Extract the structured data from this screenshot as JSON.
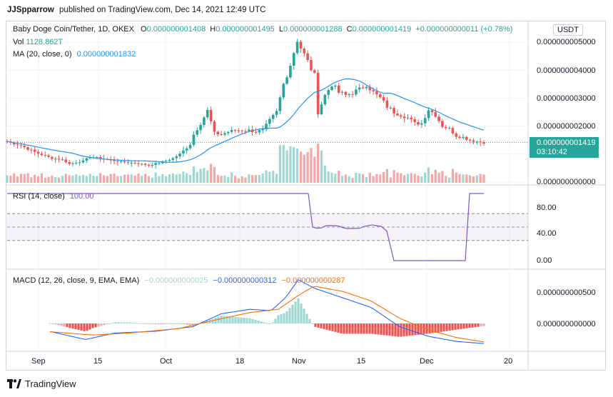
{
  "header": {
    "user": "JJSpparrow",
    "published": "published on TradingView.com, Dec 14, 2021 12:49 UTC"
  },
  "legend": {
    "symbol": "Baby Doge Coin/Tether, 1D, OKEX",
    "o_label": "O",
    "o_val": "0.000000001408",
    "h_label": "H",
    "h_val": "0.000000001495",
    "l_label": "L",
    "l_val": "0.000000001288",
    "c_label": "C",
    "c_val": "0.000000001419",
    "change": "+0.000000000011 (+0.78%)",
    "vol_label": "Vol",
    "vol_val": "1128.862T",
    "ma_label": "MA (20, close, 0)",
    "ma_val": "0.000000001832",
    "rsi_label": "RSI (14, close)",
    "rsi_val": "100.00",
    "macd_label": "MACD (12, 26, close, 9, EMA, EMA)",
    "macd_hist": "−0.000000000025",
    "macd_line": "−0.000000000312",
    "macd_signal": "−0.000000000287"
  },
  "price_axis": {
    "currency": "USDT",
    "ticks": [
      "0.000000005000",
      "0.000000004000",
      "0.000000003000",
      "0.000000002000",
      "0.000000000000"
    ],
    "last_price": "0.000000001419",
    "countdown": "03:10:42"
  },
  "rsi_axis": {
    "ticks": [
      "80.00",
      "40.00",
      "0.00"
    ]
  },
  "macd_axis": {
    "ticks": [
      "0.000000000500",
      "0.000000000000"
    ]
  },
  "time_axis": {
    "ticks": [
      "Sep",
      "15",
      "Oct",
      "18",
      "Nov",
      "15",
      "Dec",
      "20"
    ]
  },
  "footer": {
    "brand": "TradingView"
  },
  "colors": {
    "up": "#26a69a",
    "down": "#ef5350",
    "ma": "#2196f3",
    "rsi": "#7e57c2",
    "macd": "#2962ff",
    "signal": "#ff6d00",
    "grid": "#f0f3fa",
    "last": "#26a69a"
  },
  "chart_data": {
    "type": "candlestick",
    "title": "Baby Doge Coin/Tether, 1D, OKEX",
    "unit_scale": "1e-9 USDT",
    "dates": [
      "Sep 15",
      "Oct 1",
      "Oct 18",
      "Nov 1",
      "Nov 15",
      "Dec 1",
      "Dec 14"
    ],
    "close_path": [
      [
        0,
        1.45
      ],
      [
        4,
        1.3
      ],
      [
        9,
        1.02
      ],
      [
        13,
        0.85
      ],
      [
        16,
        0.8
      ],
      [
        18,
        0.65
      ],
      [
        22,
        0.75
      ],
      [
        24,
        0.9
      ],
      [
        27,
        0.85
      ],
      [
        29,
        0.8
      ],
      [
        33,
        0.72
      ],
      [
        37,
        0.68
      ],
      [
        41,
        0.6
      ],
      [
        45,
        0.72
      ],
      [
        48,
        0.85
      ],
      [
        50,
        1.0
      ],
      [
        53,
        1.35
      ],
      [
        54,
        1.7
      ],
      [
        56,
        2.1
      ],
      [
        58,
        2.55
      ],
      [
        60,
        1.75
      ],
      [
        62,
        1.7
      ],
      [
        64,
        1.8
      ],
      [
        66,
        1.85
      ],
      [
        68,
        1.85
      ],
      [
        70,
        1.85
      ],
      [
        72,
        1.8
      ],
      [
        74,
        1.85
      ],
      [
        76,
        2.2
      ],
      [
        78,
        2.5
      ],
      [
        80,
        3.5
      ],
      [
        82,
        4.2
      ],
      [
        84,
        5.1
      ],
      [
        85,
        4.8
      ],
      [
        87,
        4.3
      ],
      [
        89,
        3.8
      ],
      [
        90,
        2.5
      ],
      [
        92,
        3.1
      ],
      [
        94,
        3.5
      ],
      [
        96,
        3.2
      ],
      [
        98,
        3.1
      ],
      [
        100,
        3.2
      ],
      [
        102,
        3.3
      ],
      [
        104,
        3.5
      ],
      [
        106,
        3.2
      ],
      [
        108,
        3.0
      ],
      [
        110,
        2.7
      ],
      [
        112,
        2.5
      ],
      [
        114,
        2.4
      ],
      [
        116,
        2.3
      ],
      [
        118,
        2.1
      ],
      [
        120,
        2.1
      ],
      [
        122,
        2.6
      ],
      [
        124,
        2.4
      ],
      [
        126,
        2.0
      ],
      [
        128,
        1.9
      ],
      [
        130,
        1.65
      ],
      [
        132,
        1.6
      ],
      [
        134,
        1.5
      ],
      [
        136,
        1.45
      ],
      [
        138,
        1.42
      ]
    ],
    "ma20_last": 1.832,
    "rsi_last": 100.0,
    "macd_last": -0.312,
    "signal_last": -0.287,
    "hist_last": -0.025
  }
}
